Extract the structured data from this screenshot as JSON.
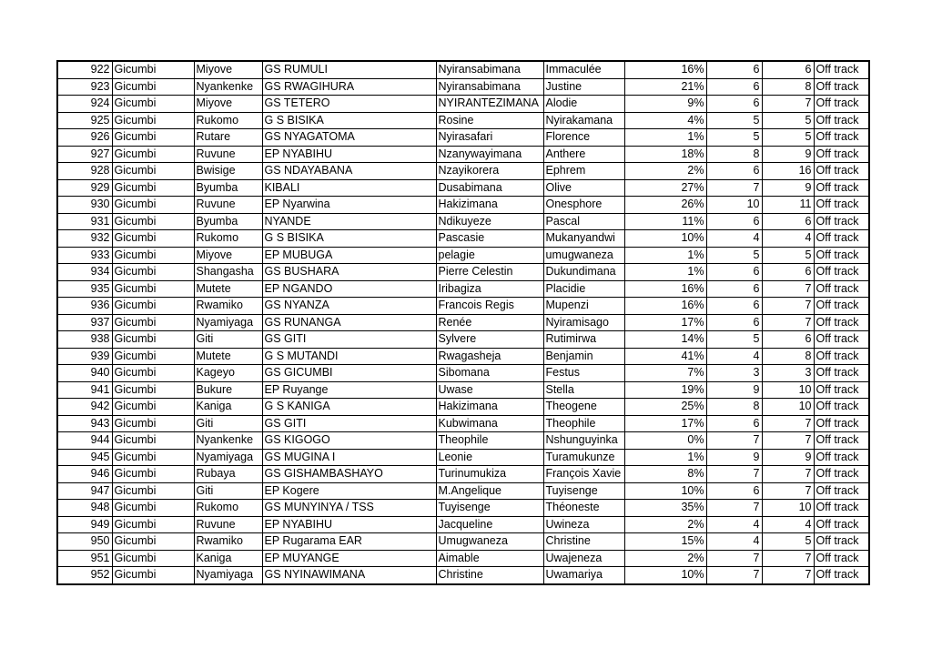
{
  "table": {
    "rows": [
      [
        922,
        "Gicumbi",
        "Miyove",
        "GS RUMULI",
        "Nyiransabimana",
        "Immaculée",
        "16%",
        6,
        6,
        "Off track"
      ],
      [
        923,
        "Gicumbi",
        "Nyankenke",
        "GS RWAGIHURA",
        "Nyiransabimana",
        "Justine",
        "21%",
        6,
        8,
        "Off track"
      ],
      [
        924,
        "Gicumbi",
        "Miyove",
        "GS TETERO",
        "NYIRANTEZIMANA",
        "Alodie",
        "9%",
        6,
        7,
        "Off track"
      ],
      [
        925,
        "Gicumbi",
        "Rukomo",
        "G S BISIKA",
        "Rosine",
        "Nyirakamana",
        "4%",
        5,
        5,
        "Off track"
      ],
      [
        926,
        "Gicumbi",
        "Rutare",
        "GS NYAGATOMA",
        "Nyirasafari",
        "Florence",
        "1%",
        5,
        5,
        "Off track"
      ],
      [
        927,
        "Gicumbi",
        "Ruvune",
        "EP NYABIHU",
        "Nzanywayimana",
        "Anthere",
        "18%",
        8,
        9,
        "Off track"
      ],
      [
        928,
        "Gicumbi",
        "Bwisige",
        "GS NDAYABANA",
        "Nzayikorera",
        "Ephrem",
        "2%",
        6,
        16,
        "Off track"
      ],
      [
        929,
        "Gicumbi",
        "Byumba",
        "KIBALI",
        "Dusabimana",
        "Olive",
        "27%",
        7,
        9,
        "Off track"
      ],
      [
        930,
        "Gicumbi",
        "Ruvune",
        "EP Nyarwina",
        "Hakizimana",
        "Onesphore",
        "26%",
        10,
        11,
        "Off track"
      ],
      [
        931,
        "Gicumbi",
        "Byumba",
        "NYANDE",
        "Ndikuyeze",
        "Pascal",
        "11%",
        6,
        6,
        "Off track"
      ],
      [
        932,
        "Gicumbi",
        "Rukomo",
        "G S BISIKA",
        "Pascasie",
        "Mukanyandwi",
        "10%",
        4,
        4,
        "Off track"
      ],
      [
        933,
        "Gicumbi",
        "Miyove",
        "EP MUBUGA",
        "pelagie",
        "umugwaneza",
        "1%",
        5,
        5,
        "Off track"
      ],
      [
        934,
        "Gicumbi",
        "Shangasha",
        "GS BUSHARA",
        "Pierre Celestin",
        "Dukundimana",
        "1%",
        6,
        6,
        "Off track"
      ],
      [
        935,
        "Gicumbi",
        "Mutete",
        "EP NGANDO",
        "Iribagiza",
        "Placidie",
        "16%",
        6,
        7,
        "Off track"
      ],
      [
        936,
        "Gicumbi",
        "Rwamiko",
        "GS NYANZA",
        "Francois Regis",
        "Mupenzi",
        "16%",
        6,
        7,
        "Off track"
      ],
      [
        937,
        "Gicumbi",
        "Nyamiyaga",
        "GS RUNANGA",
        "Renée",
        "Nyiramisago",
        "17%",
        6,
        7,
        "Off track"
      ],
      [
        938,
        "Gicumbi",
        "Giti",
        "GS GITI",
        "Sylvere",
        "Rutimirwa",
        "14%",
        5,
        6,
        "Off track"
      ],
      [
        939,
        "Gicumbi",
        "Mutete",
        "G S MUTANDI",
        "Rwagasheja",
        "Benjamin",
        "41%",
        4,
        8,
        "Off track"
      ],
      [
        940,
        "Gicumbi",
        "Kageyo",
        "GS GICUMBI",
        "Sibomana",
        "Festus",
        "7%",
        3,
        3,
        "Off track"
      ],
      [
        941,
        "Gicumbi",
        "Bukure",
        "EP Ruyange",
        "Uwase",
        "Stella",
        "19%",
        9,
        10,
        "Off track"
      ],
      [
        942,
        "Gicumbi",
        "Kaniga",
        "G S KANIGA",
        "Hakizimana",
        "Theogene",
        "25%",
        8,
        10,
        "Off track"
      ],
      [
        943,
        "Gicumbi",
        "Giti",
        "GS GITI",
        "Kubwimana",
        "Theophile",
        "17%",
        6,
        7,
        "Off track"
      ],
      [
        944,
        "Gicumbi",
        "Nyankenke",
        "GS KIGOGO",
        "Theophile",
        "Nshunguyinka",
        "0%",
        7,
        7,
        "Off track"
      ],
      [
        945,
        "Gicumbi",
        "Nyamiyaga",
        "GS MUGINA I",
        "Leonie",
        "Turamukunze",
        "1%",
        9,
        9,
        "Off track"
      ],
      [
        946,
        "Gicumbi",
        "Rubaya",
        "GS GISHAMBASHAYO",
        "Turinumukiza",
        "François Xavie",
        "8%",
        7,
        7,
        "Off track"
      ],
      [
        947,
        "Gicumbi",
        "Giti",
        "EP Kogere",
        "M.Angelique",
        "Tuyisenge",
        "10%",
        6,
        7,
        "Off track"
      ],
      [
        948,
        "Gicumbi",
        "Rukomo",
        "GS MUNYINYA / TSS",
        "Tuyisenge",
        "Théoneste",
        "35%",
        7,
        10,
        "Off track"
      ],
      [
        949,
        "Gicumbi",
        "Ruvune",
        "EP NYABIHU",
        "Jacqueline",
        "Uwineza",
        "2%",
        4,
        4,
        "Off track"
      ],
      [
        950,
        "Gicumbi",
        "Rwamiko",
        "EP Rugarama EAR",
        "Umugwaneza",
        "Christine",
        "15%",
        4,
        5,
        "Off track"
      ],
      [
        951,
        "Gicumbi",
        "Kaniga",
        "EP MUYANGE",
        "Aimable",
        "Uwajeneza",
        "2%",
        7,
        7,
        "Off track"
      ],
      [
        952,
        "Gicumbi",
        "Nyamiyaga",
        "GS NYINAWIMANA",
        "Christine",
        "Uwamariya",
        "10%",
        7,
        7,
        "Off track"
      ]
    ]
  }
}
